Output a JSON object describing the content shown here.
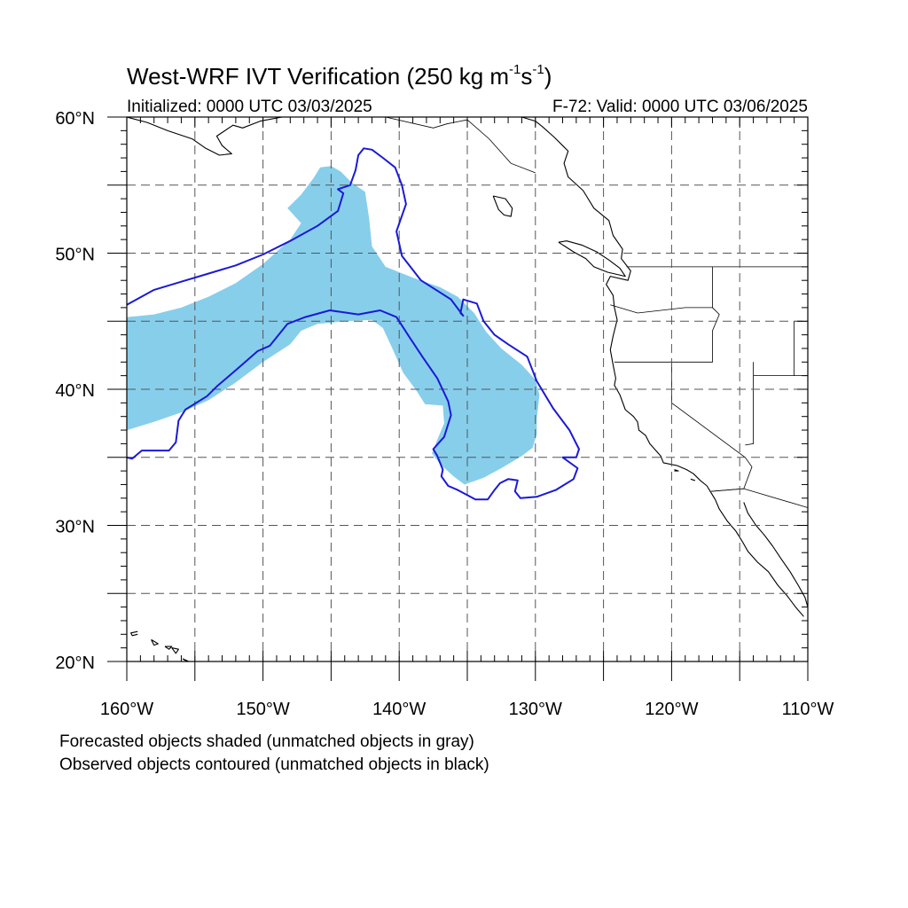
{
  "title": {
    "main": "West-WRF IVT Verification (250 kg m",
    "sup1": "-1",
    "mid": "s",
    "sup2": "-1",
    "close": ")"
  },
  "subtitle": {
    "initialized": "Initialized: 0000 UTC 03/03/2025",
    "valid": "F-72: Valid: 0000 UTC 03/06/2025"
  },
  "map": {
    "lon_range": [
      -160,
      -110
    ],
    "lat_range": [
      20,
      60
    ],
    "lon_ticks": [
      {
        "value": -160,
        "label": "160°W"
      },
      {
        "value": -150,
        "label": "150°W"
      },
      {
        "value": -140,
        "label": "140°W"
      },
      {
        "value": -130,
        "label": "130°W"
      },
      {
        "value": -120,
        "label": "120°W"
      },
      {
        "value": -110,
        "label": "110°W"
      }
    ],
    "lat_ticks": [
      {
        "value": 20,
        "label": "20°N"
      },
      {
        "value": 30,
        "label": "30°N"
      },
      {
        "value": 40,
        "label": "40°N"
      },
      {
        "value": 50,
        "label": "50°N"
      },
      {
        "value": 60,
        "label": "60°N"
      }
    ],
    "grid_lons": [
      -155,
      -150,
      -145,
      -140,
      -135,
      -130,
      -125,
      -120,
      -115
    ],
    "grid_lats": [
      25,
      30,
      35,
      40,
      45,
      50,
      55
    ],
    "grid": true,
    "colors": {
      "forecast_fill": "#87ceeb",
      "observed_contour": "#1a1ad6",
      "coastline": "#000000",
      "grid": "#555555"
    },
    "forecast_object": [
      [
        -145.8,
        56.3
      ],
      [
        -145,
        56.4
      ],
      [
        -144.3,
        56
      ],
      [
        -143.5,
        55.2
      ],
      [
        -142.5,
        54.5
      ],
      [
        -142.2,
        52.5
      ],
      [
        -142,
        50.5
      ],
      [
        -141,
        49
      ],
      [
        -139,
        48.2
      ],
      [
        -137,
        47.5
      ],
      [
        -135.7,
        46.8
      ],
      [
        -134.5,
        45.6
      ],
      [
        -133.6,
        44.2
      ],
      [
        -132.5,
        43
      ],
      [
        -131,
        41.8
      ],
      [
        -130,
        40.7
      ],
      [
        -129.7,
        39.6
      ],
      [
        -129.9,
        37.8
      ],
      [
        -129.9,
        36.7
      ],
      [
        -130.2,
        35.7
      ],
      [
        -131,
        35.1
      ],
      [
        -132.5,
        34.2
      ],
      [
        -133.8,
        33.5
      ],
      [
        -135.2,
        33
      ],
      [
        -136,
        33.6
      ],
      [
        -137,
        34.5
      ],
      [
        -137.6,
        35.3
      ],
      [
        -137.2,
        36.3
      ],
      [
        -136.7,
        37.5
      ],
      [
        -136.8,
        38.8
      ],
      [
        -138.1,
        38.9
      ],
      [
        -138.8,
        40
      ],
      [
        -139.7,
        41.2
      ],
      [
        -140.5,
        43
      ],
      [
        -141.2,
        44.5
      ],
      [
        -142,
        45.1
      ],
      [
        -144,
        45
      ],
      [
        -146,
        44.8
      ],
      [
        -147.2,
        44.3
      ],
      [
        -148,
        43.3
      ],
      [
        -150,
        42
      ],
      [
        -152,
        40.5
      ],
      [
        -154,
        39.2
      ],
      [
        -156,
        38.3
      ],
      [
        -158,
        37.6
      ],
      [
        -160,
        37
      ],
      [
        -160,
        45.3
      ],
      [
        -158,
        45.5
      ],
      [
        -156,
        46
      ],
      [
        -154,
        46.8
      ],
      [
        -152,
        47.8
      ],
      [
        -150,
        49.2
      ],
      [
        -148,
        51
      ],
      [
        -147.2,
        52.2
      ],
      [
        -148.2,
        53.3
      ],
      [
        -147.2,
        54.3
      ],
      [
        -146.3,
        55.5
      ]
    ],
    "observed_objects": [
      [
        [
          -160,
          46.2
        ],
        [
          -158,
          47.3
        ],
        [
          -156,
          47.9
        ],
        [
          -154,
          48.5
        ],
        [
          -152,
          49.1
        ],
        [
          -150,
          49.9
        ],
        [
          -148,
          50.9
        ],
        [
          -146,
          52
        ],
        [
          -144.5,
          53.1
        ],
        [
          -144.1,
          54.4
        ],
        [
          -144.5,
          54.7
        ],
        [
          -143.6,
          55
        ],
        [
          -143.2,
          56.1
        ],
        [
          -143,
          57.2
        ],
        [
          -142.6,
          57.7
        ],
        [
          -142,
          57.6
        ],
        [
          -141.2,
          57
        ],
        [
          -140.3,
          56.3
        ],
        [
          -139.8,
          55
        ],
        [
          -139.5,
          53.6
        ],
        [
          -140.2,
          51.6
        ],
        [
          -139.8,
          49.8
        ],
        [
          -138.4,
          48
        ],
        [
          -136.2,
          46.6
        ],
        [
          -135.3,
          45.4
        ],
        [
          -135.5,
          45.6
        ],
        [
          -135.3,
          46.6
        ],
        [
          -134.3,
          46.3
        ],
        [
          -133.8,
          45
        ],
        [
          -133,
          44
        ],
        [
          -132,
          43.3
        ],
        [
          -130.6,
          42.4
        ],
        [
          -129.9,
          40.6
        ],
        [
          -128.7,
          38.6
        ],
        [
          -127.5,
          37
        ],
        [
          -126.8,
          35.6
        ],
        [
          -127,
          35
        ],
        [
          -128,
          35
        ],
        [
          -126.9,
          34.2
        ],
        [
          -127.2,
          33.4
        ],
        [
          -128.5,
          32.6
        ],
        [
          -129.9,
          32.1
        ],
        [
          -131.1,
          32
        ],
        [
          -131.5,
          32.5
        ],
        [
          -131.3,
          33.3
        ],
        [
          -132,
          33.4
        ],
        [
          -132.6,
          33.1
        ],
        [
          -133,
          32.6
        ],
        [
          -133.5,
          31.9
        ],
        [
          -134.4,
          31.9
        ],
        [
          -135.7,
          32.6
        ],
        [
          -136.4,
          32.9
        ],
        [
          -136.9,
          33.6
        ],
        [
          -136.8,
          34.1
        ],
        [
          -137.2,
          35.1
        ],
        [
          -137.5,
          35.6
        ],
        [
          -136.7,
          36.5
        ],
        [
          -136.2,
          38.1
        ],
        [
          -136.4,
          39.1
        ],
        [
          -137.2,
          40.8
        ],
        [
          -138.3,
          42.4
        ],
        [
          -139.3,
          43.9
        ],
        [
          -140.2,
          45.3
        ],
        [
          -141.4,
          45.8
        ],
        [
          -143,
          45.5
        ],
        [
          -145.1,
          45.8
        ],
        [
          -146.9,
          45.3
        ],
        [
          -148.2,
          44.8
        ],
        [
          -149.5,
          43.2
        ],
        [
          -150.4,
          42.8
        ],
        [
          -152,
          41.4
        ],
        [
          -153.4,
          40.2
        ],
        [
          -154.1,
          39.5
        ],
        [
          -155.7,
          38.5
        ],
        [
          -156.2,
          37.7
        ],
        [
          -156.4,
          36.1
        ],
        [
          -156.9,
          35.5
        ],
        [
          -158.9,
          35.5
        ],
        [
          -159.6,
          34.9
        ],
        [
          -160,
          35
        ]
      ]
    ],
    "coastlines": [
      [
        [
          -131,
          60
        ],
        [
          -130,
          59.7
        ],
        [
          -129.5,
          59.3
        ],
        [
          -128.6,
          58.5
        ],
        [
          -127.6,
          57.5
        ],
        [
          -127.9,
          56.6
        ],
        [
          -127.6,
          55.6
        ],
        [
          -126.5,
          54.6
        ],
        [
          -125.7,
          53.3
        ],
        [
          -124.6,
          52.4
        ],
        [
          -124.3,
          51.3
        ],
        [
          -123.6,
          50.3
        ],
        [
          -123.7,
          49.6
        ],
        [
          -123,
          48.7
        ],
        [
          -123.2,
          48
        ],
        [
          -124.5,
          48.3
        ],
        [
          -124.8,
          47.7
        ],
        [
          -124.3,
          46.9
        ],
        [
          -124.2,
          46
        ],
        [
          -124,
          45.1
        ],
        [
          -124.3,
          43.9
        ],
        [
          -124.5,
          42.9
        ],
        [
          -124.3,
          41.8
        ],
        [
          -124.1,
          40.8
        ],
        [
          -124.2,
          40.3
        ],
        [
          -123.8,
          39.6
        ],
        [
          -123.4,
          38.5
        ],
        [
          -122.8,
          38
        ],
        [
          -122.5,
          37.6
        ],
        [
          -122.4,
          37
        ],
        [
          -121.9,
          36.6
        ],
        [
          -121.6,
          36
        ],
        [
          -120.8,
          35.1
        ],
        [
          -120.6,
          34.6
        ],
        [
          -119.6,
          34.4
        ],
        [
          -118.9,
          34.1
        ],
        [
          -118.4,
          33.8
        ],
        [
          -117.9,
          33.3
        ],
        [
          -117.4,
          32.9
        ],
        [
          -117.1,
          32.4
        ],
        [
          -116.8,
          31.9
        ],
        [
          -116.5,
          31.2
        ],
        [
          -115.9,
          30.3
        ],
        [
          -115.3,
          29.6
        ],
        [
          -114.8,
          28.8
        ],
        [
          -114.4,
          28.1
        ],
        [
          -113.7,
          27.3
        ],
        [
          -112.9,
          26.6
        ],
        [
          -112.2,
          25.6
        ],
        [
          -111.5,
          24.8
        ],
        [
          -110.9,
          24
        ],
        [
          -110.3,
          23.3
        ]
      ],
      [
        [
          -128.3,
          50.8
        ],
        [
          -127.2,
          50.1
        ],
        [
          -126.3,
          49.6
        ],
        [
          -125.7,
          49
        ],
        [
          -124.7,
          48.6
        ],
        [
          -123.4,
          48.3
        ],
        [
          -123.8,
          48.9
        ],
        [
          -124.6,
          49.5
        ],
        [
          -125.5,
          50.1
        ],
        [
          -126.6,
          50.6
        ],
        [
          -127.7,
          50.9
        ],
        [
          -128.3,
          50.8
        ]
      ],
      [
        [
          -133.1,
          54.2
        ],
        [
          -132.2,
          54
        ],
        [
          -131.7,
          53.3
        ],
        [
          -131.8,
          52.7
        ],
        [
          -132.3,
          52.8
        ],
        [
          -132.7,
          53.2
        ],
        [
          -133.1,
          54.2
        ]
      ],
      [
        [
          -114.7,
          31.7
        ],
        [
          -114.4,
          30.9
        ],
        [
          -113.8,
          30
        ],
        [
          -113.2,
          29.3
        ],
        [
          -112.6,
          28.5
        ],
        [
          -112,
          27.6
        ],
        [
          -111.3,
          26.6
        ],
        [
          -110.7,
          25.6
        ],
        [
          -110.2,
          24.7
        ],
        [
          -110,
          24
        ]
      ],
      [
        [
          -160,
          60
        ],
        [
          -158.5,
          59.6
        ],
        [
          -157,
          59
        ],
        [
          -155.2,
          58.4
        ],
        [
          -154.2,
          57.7
        ],
        [
          -153.2,
          57.2
        ],
        [
          -152.3,
          57.3
        ],
        [
          -153,
          57.9
        ],
        [
          -153.4,
          58.6
        ],
        [
          -152.2,
          59.4
        ],
        [
          -151.5,
          59.2
        ],
        [
          -150.2,
          59.7
        ],
        [
          -148.6,
          60
        ]
      ],
      [
        [
          -159.2,
          22.2
        ],
        [
          -159.7,
          22.1
        ],
        [
          -159.6,
          21.9
        ],
        [
          -159.2,
          22
        ]
      ],
      [
        [
          -158.2,
          21.6
        ],
        [
          -157.7,
          21.3
        ],
        [
          -158,
          21.2
        ],
        [
          -158.2,
          21.6
        ]
      ],
      [
        [
          -157.2,
          21.1
        ],
        [
          -156.7,
          21.1
        ],
        [
          -156.9,
          20.9
        ],
        [
          -157.2,
          21.1
        ]
      ],
      [
        [
          -156.7,
          21
        ],
        [
          -156.2,
          20.9
        ],
        [
          -156.4,
          20.6
        ],
        [
          -156.7,
          21
        ]
      ],
      [
        [
          -155.9,
          20.2
        ],
        [
          -155,
          19.8
        ],
        [
          -154.8,
          19.5
        ],
        [
          -155.9,
          20.2
        ]
      ],
      [
        [
          -119.8,
          34.1
        ],
        [
          -119.5,
          34
        ],
        [
          -119.8,
          34
        ]
      ],
      [
        [
          -118.6,
          33.4
        ],
        [
          -118.3,
          33.3
        ],
        [
          -118.6,
          33.4
        ]
      ]
    ],
    "borders": [
      [
        [
          -141,
          60
        ],
        [
          -137.5,
          59.2
        ],
        [
          -136.5,
          59.5
        ],
        [
          -135,
          59.8
        ],
        [
          -133.4,
          58.4
        ],
        [
          -131.8,
          56.6
        ],
        [
          -130,
          55.9
        ]
      ],
      [
        [
          -123.3,
          49
        ],
        [
          -110,
          49
        ]
      ],
      [
        [
          -117,
          49
        ],
        [
          -117,
          46
        ],
        [
          -116.5,
          45.5
        ],
        [
          -117,
          44.3
        ],
        [
          -117,
          42
        ],
        [
          -124.2,
          42
        ]
      ],
      [
        [
          -120,
          42
        ],
        [
          -120,
          39
        ],
        [
          -114.6,
          35
        ],
        [
          -114.1,
          34.3
        ],
        [
          -114.7,
          32.7
        ],
        [
          -117.1,
          32.5
        ]
      ],
      [
        [
          -124.5,
          46.2
        ],
        [
          -122.5,
          45.6
        ],
        [
          -119,
          46
        ],
        [
          -117,
          46
        ]
      ],
      [
        [
          -114,
          42
        ],
        [
          -114,
          36
        ],
        [
          -114.6,
          35.9
        ]
      ],
      [
        [
          -114,
          41
        ],
        [
          -110,
          41
        ]
      ],
      [
        [
          -111,
          45
        ],
        [
          -110,
          45
        ]
      ],
      [
        [
          -117.1,
          32.5
        ],
        [
          -114.7,
          32.7
        ],
        [
          -110,
          31.3
        ]
      ],
      [
        [
          -111,
          45
        ],
        [
          -111,
          41
        ]
      ]
    ]
  }
}
